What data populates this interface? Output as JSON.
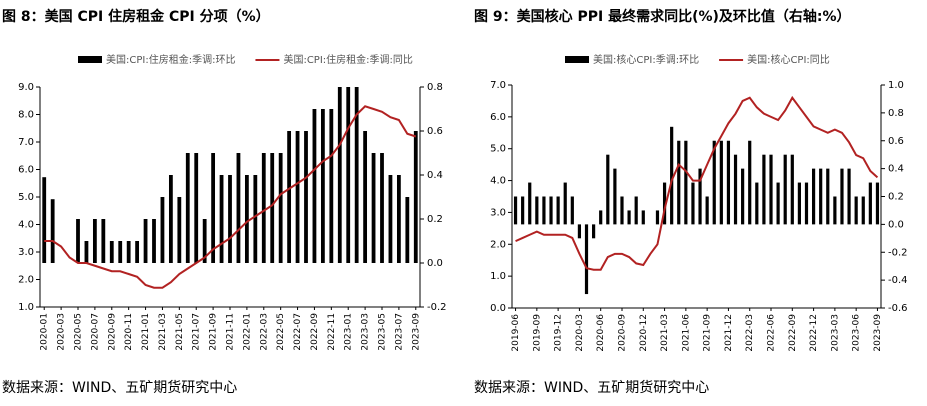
{
  "chart_data": [
    {
      "type": "combo",
      "title": "图 8：美国 CPI 住房租金 CPI 分项（%）",
      "note": "数据来源：WIND、五矿期货研究中心",
      "categories": [
        "2020-01",
        null,
        "2020-03",
        null,
        "2020-05",
        null,
        "2020-07",
        null,
        "2020-09",
        null,
        "2020-11",
        null,
        "2021-01",
        null,
        "2021-03",
        null,
        "2021-05",
        null,
        "2021-07",
        null,
        "2021-09",
        null,
        "2021-11",
        null,
        "2022-01",
        null,
        "2022-03",
        null,
        "2022-05",
        null,
        "2022-07",
        null,
        "2022-09",
        null,
        "2022-11",
        null,
        "2023-01",
        null,
        "2023-03",
        null,
        "2023-05",
        null,
        "2023-07",
        null,
        "2023-09"
      ],
      "series": [
        {
          "name": "美国:CPI:住房租金:季调:环比",
          "type": "bar",
          "axis": "y2",
          "color": "#000000",
          "values": [
            0.39,
            0.29,
            0.0,
            0.0,
            0.2,
            0.1,
            0.2,
            0.2,
            0.1,
            0.1,
            0.1,
            0.1,
            0.2,
            0.2,
            0.3,
            0.4,
            0.3,
            0.5,
            0.5,
            0.2,
            0.5,
            0.4,
            0.4,
            0.5,
            0.4,
            0.4,
            0.5,
            0.5,
            0.5,
            0.6,
            0.6,
            0.6,
            0.7,
            0.7,
            0.7,
            0.8,
            0.8,
            0.8,
            0.6,
            0.5,
            0.5,
            0.4,
            0.4,
            0.3,
            0.6
          ]
        },
        {
          "name": "美国:CPI:住房租金:季调:同比",
          "type": "line",
          "color": "#b22222",
          "values": [
            3.4,
            3.4,
            3.2,
            2.8,
            2.6,
            2.6,
            2.5,
            2.4,
            2.3,
            2.3,
            2.2,
            2.1,
            1.8,
            1.7,
            1.7,
            1.9,
            2.2,
            2.4,
            2.6,
            2.8,
            3.1,
            3.3,
            3.5,
            3.8,
            4.1,
            4.3,
            4.5,
            4.7,
            5.1,
            5.3,
            5.5,
            5.7,
            6.0,
            6.3,
            6.5,
            6.9,
            7.5,
            8.0,
            8.3,
            8.2,
            8.1,
            7.9,
            7.8,
            7.3,
            7.2
          ]
        }
      ],
      "ylim": [
        1,
        9
      ],
      "yticks": [
        {
          "value": 1,
          "label": "1.0"
        },
        {
          "value": 2,
          "label": "2.0"
        },
        {
          "value": 3,
          "label": "3.0"
        },
        {
          "value": 4,
          "label": "4.0"
        },
        {
          "value": 5,
          "label": "5.0"
        },
        {
          "value": 6,
          "label": "6.0"
        },
        {
          "value": 7,
          "label": "7.0"
        },
        {
          "value": 8,
          "label": "8.0"
        },
        {
          "value": 9,
          "label": "9.0"
        }
      ],
      "y2lim": [
        -0.2,
        0.8
      ],
      "y2ticks": [
        -0.2,
        {
          "value": 0,
          "label": "0.0"
        },
        0.2,
        0.4,
        0.6,
        0.8
      ]
    },
    {
      "type": "combo",
      "title": "图 9：美国核心 PPI 最终需求同比(%)及环比值（右轴:%）",
      "note": "数据来源：WIND、五矿期货研究中心",
      "categories": [
        "2019-06",
        null,
        null,
        "2019-09",
        null,
        null,
        "2019-12",
        null,
        null,
        "2020-03",
        null,
        null,
        "2020-06",
        null,
        null,
        "2020-09",
        null,
        null,
        "2020-12",
        null,
        null,
        "2021-03",
        null,
        null,
        "2021-06",
        null,
        null,
        "2021-09",
        null,
        null,
        "2021-12",
        null,
        null,
        "2022-03",
        null,
        null,
        "2022-06",
        null,
        null,
        "2022-09",
        null,
        null,
        "2022-12",
        null,
        null,
        "2023-03",
        null,
        null,
        "2023-06",
        null,
        null,
        "2023-09"
      ],
      "series": [
        {
          "name": "美国:核心CPI:季调:环比",
          "type": "bar",
          "axis": "y2",
          "color": "#000000",
          "values": [
            0.2,
            0.2,
            0.3,
            0.2,
            0.2,
            0.2,
            0.2,
            0.3,
            0.2,
            -0.1,
            -0.5,
            -0.1,
            0.1,
            0.5,
            0.4,
            0.2,
            0.1,
            0.2,
            0.1,
            0.0,
            0.1,
            0.3,
            0.7,
            0.6,
            0.6,
            0.3,
            0.4,
            0.2,
            0.6,
            0.6,
            0.6,
            0.5,
            0.4,
            0.6,
            0.3,
            0.5,
            0.5,
            0.3,
            0.5,
            0.5,
            0.3,
            0.3,
            0.4,
            0.4,
            0.4,
            0.2,
            0.4,
            0.4,
            0.2,
            0.2,
            0.3,
            0.3
          ]
        },
        {
          "name": "美国:核心CPI:同比",
          "type": "line",
          "color": "#b22222",
          "values": [
            2.1,
            2.2,
            2.3,
            2.4,
            2.3,
            2.3,
            2.3,
            2.3,
            2.2,
            1.7,
            1.25,
            1.2,
            1.2,
            1.6,
            1.7,
            1.7,
            1.6,
            1.4,
            1.35,
            1.7,
            2.0,
            3.1,
            4.0,
            4.5,
            4.3,
            4.0,
            4.0,
            4.5,
            5.0,
            5.4,
            5.8,
            6.1,
            6.5,
            6.6,
            6.3,
            6.1,
            6.0,
            5.9,
            6.2,
            6.6,
            6.3,
            6.0,
            5.7,
            5.6,
            5.5,
            5.6,
            5.5,
            5.2,
            4.8,
            4.7,
            4.3,
            4.1
          ]
        }
      ],
      "ylim": [
        0,
        7
      ],
      "yticks": [
        {
          "value": 0,
          "label": "0.0"
        },
        {
          "value": 1,
          "label": "1.0"
        },
        {
          "value": 2,
          "label": "2.0"
        },
        {
          "value": 3,
          "label": "3.0"
        },
        {
          "value": 4,
          "label": "4.0"
        },
        {
          "value": 5,
          "label": "5.0"
        },
        {
          "value": 6,
          "label": "6.0"
        },
        {
          "value": 7,
          "label": "7.0"
        }
      ],
      "y2lim": [
        -0.6,
        1.0
      ],
      "y2ticks": [
        -0.6,
        -0.4,
        -0.2,
        {
          "value": 0,
          "label": "0.0"
        },
        0.2,
        0.4,
        0.6,
        0.8,
        {
          "value": 1,
          "label": "1.0"
        }
      ]
    }
  ]
}
